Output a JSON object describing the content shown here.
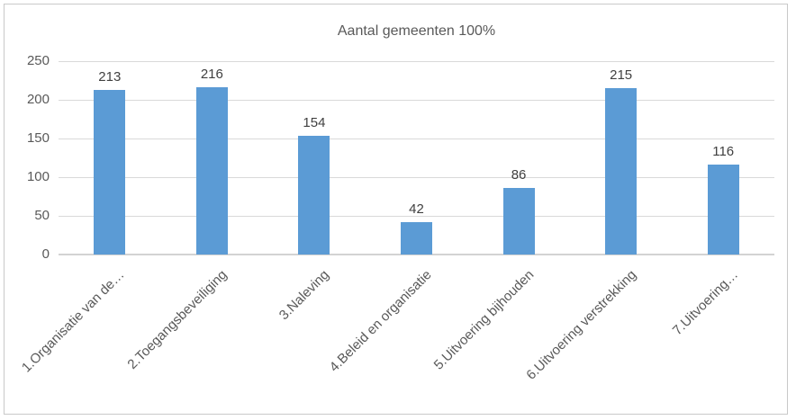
{
  "chart_data": {
    "type": "bar",
    "title": "Aantal gemeenten 100%",
    "categories": [
      "1.Organisatie van de…",
      "2.Toegangsbeveiliging",
      "3.Naleving",
      "4.Beleid en organisatie",
      "5.Uitvoering bijhouden",
      "6.Uitvoering verstrekking",
      "7.Uitvoering…"
    ],
    "values": [
      213,
      216,
      154,
      42,
      86,
      215,
      116
    ],
    "xlabel": "",
    "ylabel": "",
    "ylim": [
      0,
      250
    ],
    "yticks": [
      0,
      50,
      100,
      150,
      200,
      250
    ],
    "grid": true,
    "legend_position": "none",
    "bar_color": "#5B9BD5"
  },
  "colors": {
    "bar": "#5B9BD5",
    "gridline": "#D9D9D9",
    "axis_line": "#D3D3D3",
    "title_text": "#595959",
    "tick_text": "#595959",
    "value_label_text": "#404040",
    "frame_border": "#C9C9C9",
    "background": "#FFFFFF"
  }
}
